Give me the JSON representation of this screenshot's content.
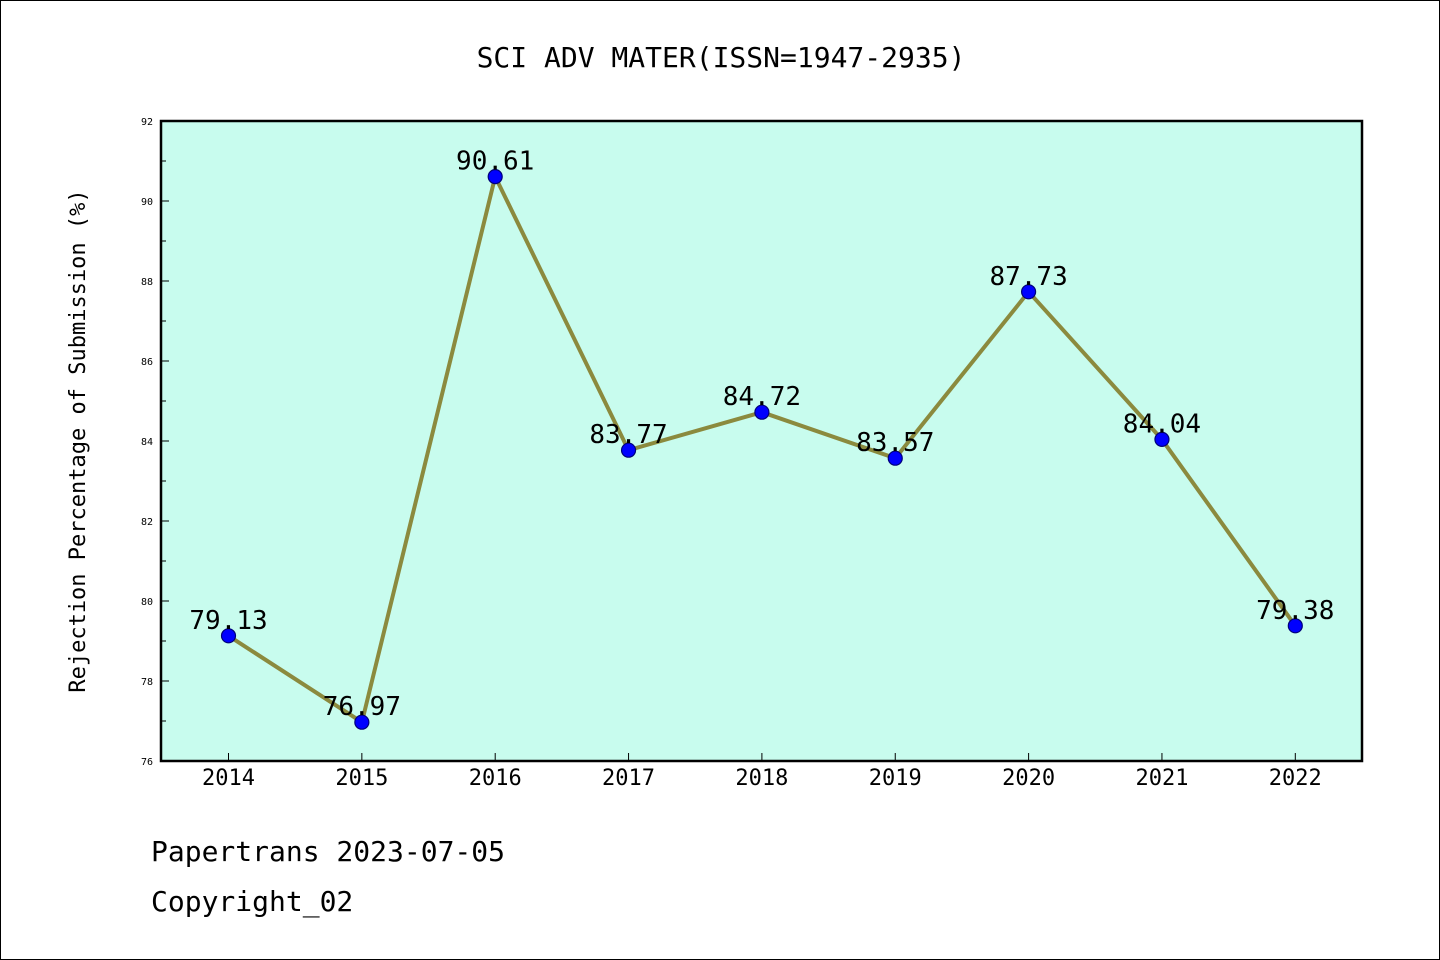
{
  "colors": {
    "plot_background": "#c8fcee",
    "line": "#8b8a3e",
    "marker_fill": "#0000ff",
    "marker_edge": "#00007a",
    "frame": "#000000"
  },
  "chart_data": {
    "type": "line",
    "title": "SCI ADV MATER(ISSN=1947-2935)",
    "xlabel": "",
    "ylabel": "Rejection Percentage of Submission (%)",
    "categories": [
      "2014",
      "2015",
      "2016",
      "2017",
      "2018",
      "2019",
      "2020",
      "2021",
      "2022"
    ],
    "series": [
      {
        "name": "Rejection Percentage",
        "values": [
          79.13,
          76.97,
          90.61,
          83.77,
          84.72,
          83.57,
          87.73,
          84.04,
          79.38
        ],
        "labels": [
          "79.13",
          "76.97",
          "90.61",
          "83.77",
          "84.72",
          "83.57",
          "87.73",
          "84.04",
          "79.38"
        ]
      }
    ],
    "ylim": [
      76,
      92
    ],
    "y_major_ticks": [
      76,
      78,
      80,
      82,
      84,
      86,
      88,
      90,
      92
    ],
    "y_minor_step": 1,
    "grid": false
  },
  "footer": {
    "line1": "Papertrans 2023-07-05",
    "line2": "Copyright_02"
  }
}
